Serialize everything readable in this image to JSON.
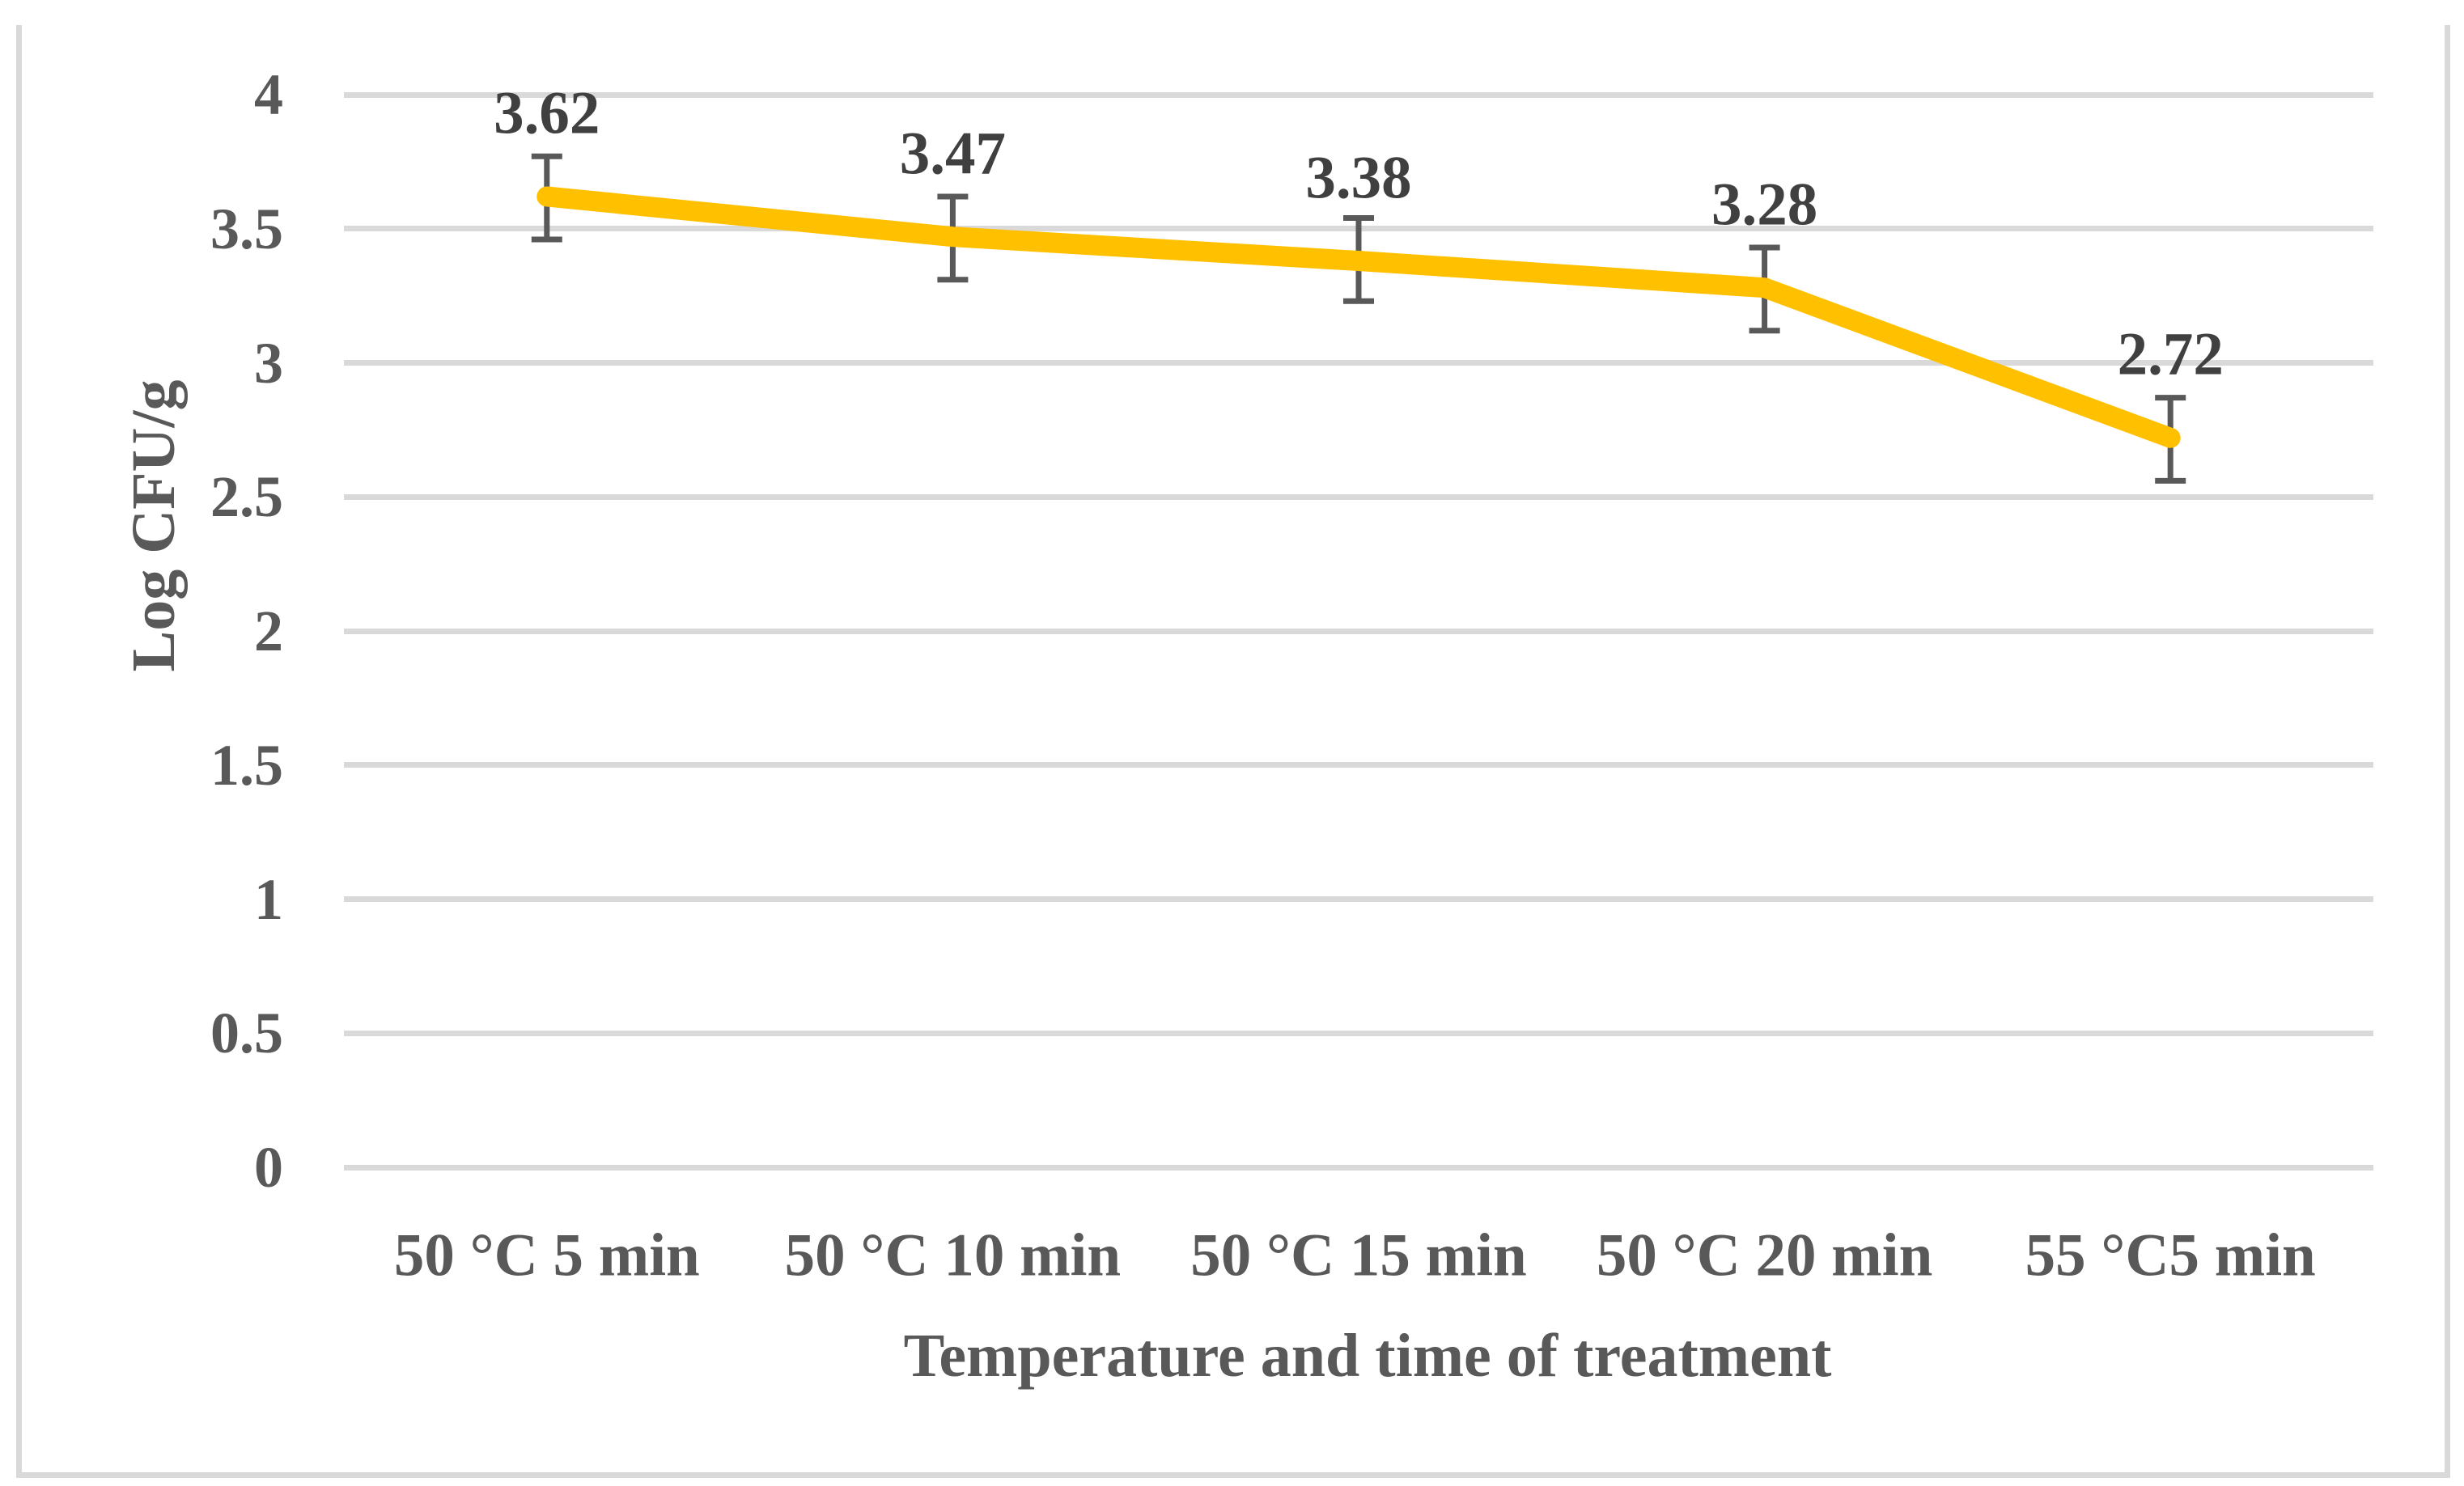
{
  "figure": {
    "background": "#ffffff",
    "border_color": "#d9d9d9"
  },
  "chart_data": {
    "type": "line",
    "title": "",
    "xlabel": "Temperature and time of treatment",
    "ylabel": "Log CFU/g",
    "categories": [
      "50 °C 5 min",
      "50 °C 10 min",
      "50 °C 15 min",
      "50 °C 20 min",
      "55 °C5 min"
    ],
    "series": [
      {
        "name": "Log CFU/g",
        "values": [
          3.62,
          3.47,
          3.38,
          3.28,
          2.72
        ],
        "data_labels": [
          "3.62",
          "3.47",
          "3.38",
          "3.28",
          "2.72"
        ],
        "error_plus": [
          0.15,
          0.15,
          0.16,
          0.15,
          0.15
        ],
        "error_minus": [
          0.16,
          0.16,
          0.15,
          0.16,
          0.16
        ],
        "color": "#ffc000"
      }
    ],
    "ylim": [
      0,
      4
    ],
    "ytick_step": 0.5,
    "yticks": [
      "0",
      "0.5",
      "1",
      "1.5",
      "2",
      "2.5",
      "3",
      "3.5",
      "4"
    ],
    "grid": "horizontal",
    "gridline_color": "#d9d9d9",
    "error_bar_color": "#595959",
    "axis_text_color": "#595959",
    "data_label_color": "#404040",
    "legend": "none"
  }
}
